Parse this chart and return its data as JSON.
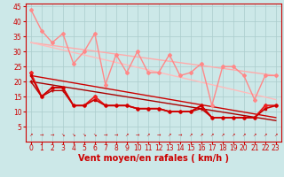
{
  "background_color": "#cce8e8",
  "grid_color": "#aacccc",
  "x_ticks": [
    0,
    1,
    2,
    3,
    4,
    5,
    6,
    7,
    8,
    9,
    10,
    11,
    12,
    13,
    14,
    15,
    16,
    17,
    18,
    19,
    20,
    21,
    22,
    23
  ],
  "xlabel": "Vent moyen/en rafales ( km/h )",
  "ylim": [
    0,
    46
  ],
  "yticks": [
    5,
    10,
    15,
    20,
    25,
    30,
    35,
    40,
    45
  ],
  "lines": [
    {
      "x": [
        0,
        1,
        2,
        3,
        4,
        5,
        6,
        7,
        8,
        9,
        10,
        11,
        12,
        13,
        14,
        15,
        16,
        17,
        18,
        19,
        20,
        21,
        22,
        23
      ],
      "y": [
        44,
        37,
        33,
        36,
        26,
        30,
        36,
        19,
        29,
        23,
        30,
        23,
        23,
        29,
        22,
        23,
        26,
        12,
        25,
        25,
        22,
        14,
        22,
        22
      ],
      "color": "#ff8888",
      "lw": 1.0,
      "marker": "D",
      "ms": 2.0,
      "zorder": 3
    },
    {
      "x": [
        0,
        23
      ],
      "y": [
        33,
        22
      ],
      "color": "#ffaaaa",
      "lw": 1.0,
      "marker": "None",
      "ms": 0,
      "zorder": 2
    },
    {
      "x": [
        0,
        23
      ],
      "y": [
        33,
        14
      ],
      "color": "#ffbbbb",
      "lw": 1.0,
      "marker": "None",
      "ms": 0,
      "zorder": 2
    },
    {
      "x": [
        0,
        1,
        2,
        3,
        4,
        5,
        6,
        7,
        8,
        9,
        10,
        11,
        12,
        13,
        14,
        15,
        16,
        17,
        18,
        19,
        20,
        21,
        22,
        23
      ],
      "y": [
        23,
        15,
        18,
        18,
        12,
        12,
        15,
        12,
        12,
        12,
        11,
        11,
        11,
        10,
        10,
        10,
        12,
        8,
        8,
        8,
        8,
        8,
        12,
        12
      ],
      "color": "#ee2222",
      "lw": 1.2,
      "marker": "D",
      "ms": 2.0,
      "zorder": 5
    },
    {
      "x": [
        0,
        1,
        2,
        3,
        4,
        5,
        6,
        7,
        8,
        9,
        10,
        11,
        12,
        13,
        14,
        15,
        16,
        17,
        18,
        19,
        20,
        21,
        22,
        23
      ],
      "y": [
        22,
        15,
        18,
        18,
        12,
        12,
        14,
        12,
        12,
        12,
        11,
        11,
        11,
        10,
        10,
        10,
        12,
        8,
        8,
        8,
        8,
        8,
        11,
        12
      ],
      "color": "#cc0000",
      "lw": 1.2,
      "marker": "s",
      "ms": 2.0,
      "zorder": 5
    },
    {
      "x": [
        0,
        1,
        2,
        3,
        4,
        5,
        6,
        7,
        8,
        9,
        10,
        11,
        12,
        13,
        14,
        15,
        16,
        17,
        18,
        19,
        20,
        21,
        22,
        23
      ],
      "y": [
        20,
        15,
        17,
        17,
        12,
        12,
        15,
        12,
        12,
        12,
        11,
        11,
        11,
        10,
        10,
        10,
        11,
        8,
        8,
        8,
        8,
        8,
        12,
        12
      ],
      "color": "#bb0000",
      "lw": 1.0,
      "marker": "+",
      "ms": 3.5,
      "zorder": 4
    },
    {
      "x": [
        0,
        23
      ],
      "y": [
        22,
        8
      ],
      "color": "#cc0000",
      "lw": 1.0,
      "marker": "None",
      "ms": 0,
      "zorder": 2
    },
    {
      "x": [
        0,
        23
      ],
      "y": [
        20,
        7
      ],
      "color": "#aa0000",
      "lw": 1.0,
      "marker": "None",
      "ms": 0,
      "zorder": 2
    }
  ],
  "arrow_color": "#cc0000",
  "font_color": "#cc0000",
  "xlabel_fontsize": 7,
  "tick_fontsize": 5.5
}
